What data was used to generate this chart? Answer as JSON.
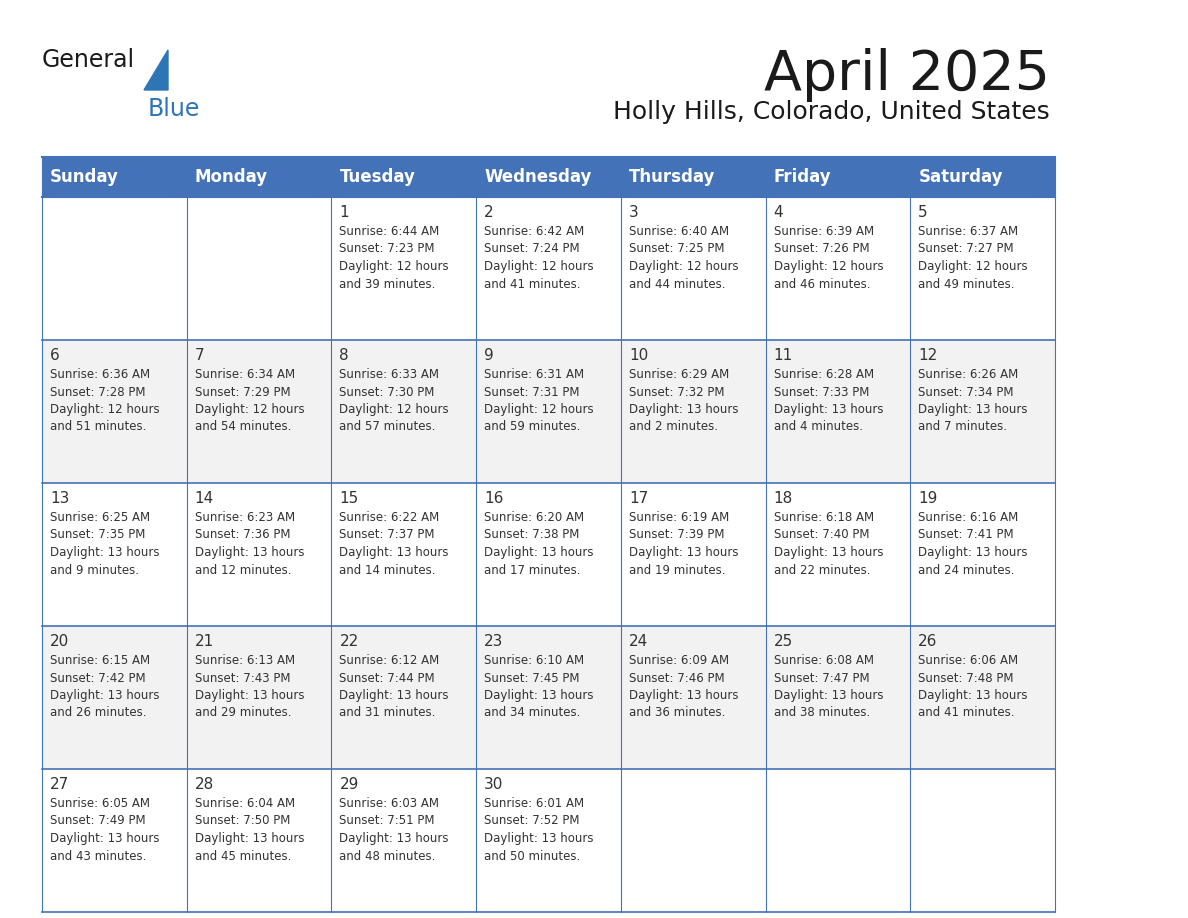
{
  "title": "April 2025",
  "subtitle": "Holly Hills, Colorado, United States",
  "header_bg_color": "#4472b8",
  "header_text_color": "#ffffff",
  "border_color": "#4472b8",
  "text_color": "#333333",
  "day_number_color": "#333333",
  "cell_bg_even": "#f2f2f2",
  "cell_bg_odd": "#ffffff",
  "logo_text_color": "#1a1a1a",
  "logo_blue_color": "#2e75b6",
  "triangle_color": "#2e75b6",
  "days_of_week": [
    "Sunday",
    "Monday",
    "Tuesday",
    "Wednesday",
    "Thursday",
    "Friday",
    "Saturday"
  ],
  "weeks": [
    [
      {
        "day": "",
        "info": ""
      },
      {
        "day": "",
        "info": ""
      },
      {
        "day": "1",
        "info": "Sunrise: 6:44 AM\nSunset: 7:23 PM\nDaylight: 12 hours\nand 39 minutes."
      },
      {
        "day": "2",
        "info": "Sunrise: 6:42 AM\nSunset: 7:24 PM\nDaylight: 12 hours\nand 41 minutes."
      },
      {
        "day": "3",
        "info": "Sunrise: 6:40 AM\nSunset: 7:25 PM\nDaylight: 12 hours\nand 44 minutes."
      },
      {
        "day": "4",
        "info": "Sunrise: 6:39 AM\nSunset: 7:26 PM\nDaylight: 12 hours\nand 46 minutes."
      },
      {
        "day": "5",
        "info": "Sunrise: 6:37 AM\nSunset: 7:27 PM\nDaylight: 12 hours\nand 49 minutes."
      }
    ],
    [
      {
        "day": "6",
        "info": "Sunrise: 6:36 AM\nSunset: 7:28 PM\nDaylight: 12 hours\nand 51 minutes."
      },
      {
        "day": "7",
        "info": "Sunrise: 6:34 AM\nSunset: 7:29 PM\nDaylight: 12 hours\nand 54 minutes."
      },
      {
        "day": "8",
        "info": "Sunrise: 6:33 AM\nSunset: 7:30 PM\nDaylight: 12 hours\nand 57 minutes."
      },
      {
        "day": "9",
        "info": "Sunrise: 6:31 AM\nSunset: 7:31 PM\nDaylight: 12 hours\nand 59 minutes."
      },
      {
        "day": "10",
        "info": "Sunrise: 6:29 AM\nSunset: 7:32 PM\nDaylight: 13 hours\nand 2 minutes."
      },
      {
        "day": "11",
        "info": "Sunrise: 6:28 AM\nSunset: 7:33 PM\nDaylight: 13 hours\nand 4 minutes."
      },
      {
        "day": "12",
        "info": "Sunrise: 6:26 AM\nSunset: 7:34 PM\nDaylight: 13 hours\nand 7 minutes."
      }
    ],
    [
      {
        "day": "13",
        "info": "Sunrise: 6:25 AM\nSunset: 7:35 PM\nDaylight: 13 hours\nand 9 minutes."
      },
      {
        "day": "14",
        "info": "Sunrise: 6:23 AM\nSunset: 7:36 PM\nDaylight: 13 hours\nand 12 minutes."
      },
      {
        "day": "15",
        "info": "Sunrise: 6:22 AM\nSunset: 7:37 PM\nDaylight: 13 hours\nand 14 minutes."
      },
      {
        "day": "16",
        "info": "Sunrise: 6:20 AM\nSunset: 7:38 PM\nDaylight: 13 hours\nand 17 minutes."
      },
      {
        "day": "17",
        "info": "Sunrise: 6:19 AM\nSunset: 7:39 PM\nDaylight: 13 hours\nand 19 minutes."
      },
      {
        "day": "18",
        "info": "Sunrise: 6:18 AM\nSunset: 7:40 PM\nDaylight: 13 hours\nand 22 minutes."
      },
      {
        "day": "19",
        "info": "Sunrise: 6:16 AM\nSunset: 7:41 PM\nDaylight: 13 hours\nand 24 minutes."
      }
    ],
    [
      {
        "day": "20",
        "info": "Sunrise: 6:15 AM\nSunset: 7:42 PM\nDaylight: 13 hours\nand 26 minutes."
      },
      {
        "day": "21",
        "info": "Sunrise: 6:13 AM\nSunset: 7:43 PM\nDaylight: 13 hours\nand 29 minutes."
      },
      {
        "day": "22",
        "info": "Sunrise: 6:12 AM\nSunset: 7:44 PM\nDaylight: 13 hours\nand 31 minutes."
      },
      {
        "day": "23",
        "info": "Sunrise: 6:10 AM\nSunset: 7:45 PM\nDaylight: 13 hours\nand 34 minutes."
      },
      {
        "day": "24",
        "info": "Sunrise: 6:09 AM\nSunset: 7:46 PM\nDaylight: 13 hours\nand 36 minutes."
      },
      {
        "day": "25",
        "info": "Sunrise: 6:08 AM\nSunset: 7:47 PM\nDaylight: 13 hours\nand 38 minutes."
      },
      {
        "day": "26",
        "info": "Sunrise: 6:06 AM\nSunset: 7:48 PM\nDaylight: 13 hours\nand 41 minutes."
      }
    ],
    [
      {
        "day": "27",
        "info": "Sunrise: 6:05 AM\nSunset: 7:49 PM\nDaylight: 13 hours\nand 43 minutes."
      },
      {
        "day": "28",
        "info": "Sunrise: 6:04 AM\nSunset: 7:50 PM\nDaylight: 13 hours\nand 45 minutes."
      },
      {
        "day": "29",
        "info": "Sunrise: 6:03 AM\nSunset: 7:51 PM\nDaylight: 13 hours\nand 48 minutes."
      },
      {
        "day": "30",
        "info": "Sunrise: 6:01 AM\nSunset: 7:52 PM\nDaylight: 13 hours\nand 50 minutes."
      },
      {
        "day": "",
        "info": ""
      },
      {
        "day": "",
        "info": ""
      },
      {
        "day": "",
        "info": ""
      }
    ]
  ],
  "title_fontsize": 40,
  "subtitle_fontsize": 18,
  "header_fontsize": 12,
  "day_num_fontsize": 11,
  "info_fontsize": 8.5
}
